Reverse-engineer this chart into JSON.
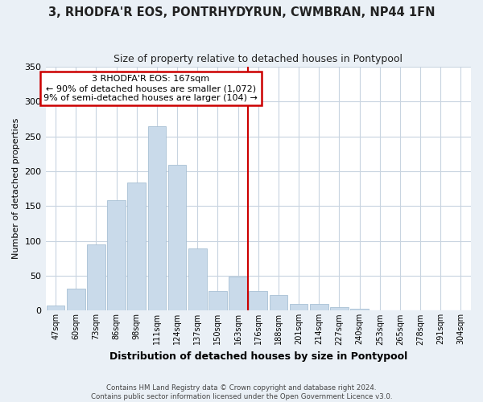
{
  "title": "3, RHODFA'R EOS, PONTRHYDYRUN, CWMBRAN, NP44 1FN",
  "subtitle": "Size of property relative to detached houses in Pontypool",
  "xlabel": "Distribution of detached houses by size in Pontypool",
  "ylabel": "Number of detached properties",
  "bar_color": "#c9daea",
  "bar_edge_color": "#a8c0d4",
  "categories": [
    "47sqm",
    "60sqm",
    "73sqm",
    "86sqm",
    "98sqm",
    "111sqm",
    "124sqm",
    "137sqm",
    "150sqm",
    "163sqm",
    "176sqm",
    "188sqm",
    "201sqm",
    "214sqm",
    "227sqm",
    "240sqm",
    "253sqm",
    "265sqm",
    "278sqm",
    "291sqm",
    "304sqm"
  ],
  "values": [
    7,
    32,
    95,
    159,
    184,
    265,
    209,
    89,
    28,
    49,
    28,
    22,
    10,
    10,
    5,
    3,
    1,
    0,
    0,
    0,
    1
  ],
  "ylim": [
    0,
    350
  ],
  "yticks": [
    0,
    50,
    100,
    150,
    200,
    250,
    300,
    350
  ],
  "property_line_x": 9.5,
  "property_line_color": "#cc0000",
  "annotation_title": "3 RHODFA'R EOS: 167sqm",
  "annotation_line1": "← 90% of detached houses are smaller (1,072)",
  "annotation_line2": "9% of semi-detached houses are larger (104) →",
  "annotation_box_color": "#ffffff",
  "annotation_border_color": "#cc0000",
  "footer_line1": "Contains HM Land Registry data © Crown copyright and database right 2024.",
  "footer_line2": "Contains public sector information licensed under the Open Government Licence v3.0.",
  "bg_color": "#eaf0f6",
  "plot_bg_color": "#ffffff",
  "grid_color": "#c8d4e0"
}
